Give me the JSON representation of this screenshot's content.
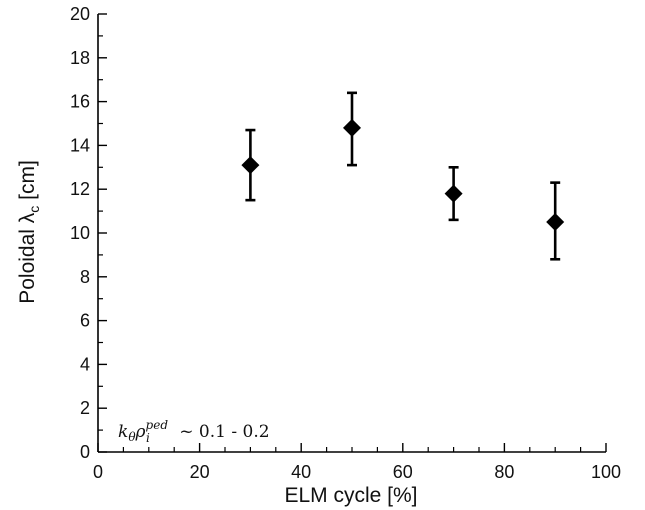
{
  "chart_data": {
    "type": "scatter",
    "xlabel": "ELM cycle [%]",
    "ylabel": "Poloidal λc [cm]",
    "xlim": [
      0,
      100
    ],
    "ylim": [
      0,
      20
    ],
    "x_ticks": [
      0,
      20,
      40,
      60,
      80,
      100
    ],
    "y_ticks": [
      0,
      2,
      4,
      6,
      8,
      10,
      12,
      14,
      16,
      18,
      20
    ],
    "grid": false,
    "marker": "diamond",
    "marker_color": "#000000",
    "points": [
      {
        "x": 30,
        "y": 13.1,
        "err_low": 11.5,
        "err_high": 14.7
      },
      {
        "x": 50,
        "y": 14.8,
        "err_low": 13.1,
        "err_high": 16.4
      },
      {
        "x": 70,
        "y": 11.8,
        "err_low": 10.6,
        "err_high": 13.0
      },
      {
        "x": 90,
        "y": 10.5,
        "err_low": 8.8,
        "err_high": 12.3
      }
    ],
    "annotation": "kθρiped ~ 0.1 - 0.2"
  }
}
